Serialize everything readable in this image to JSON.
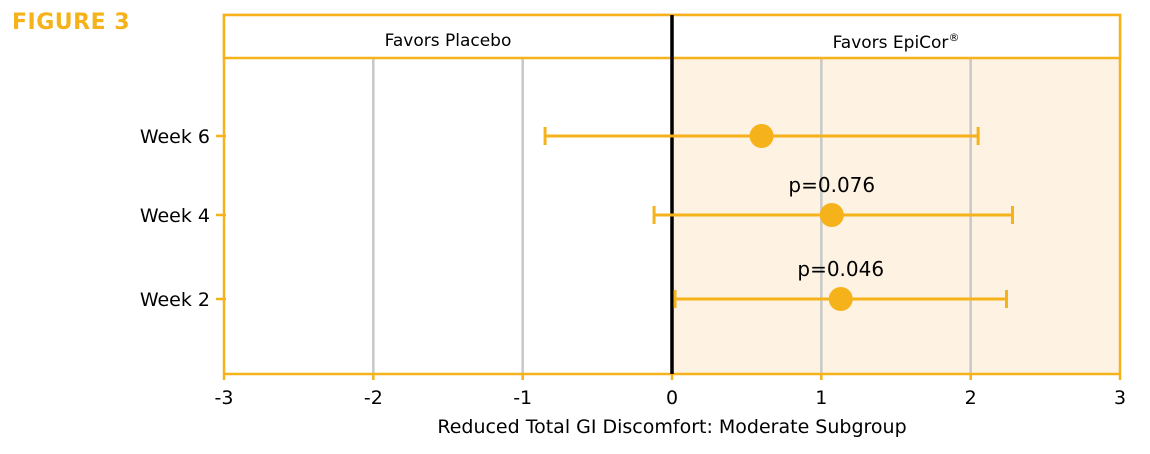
{
  "figure_label": "FIGURE 3",
  "colors": {
    "accent": "#F5B21B",
    "favor_region": "#FEF3E2",
    "grid": "#C8C8C8",
    "zero_line": "#000000"
  },
  "chart_data": {
    "type": "forest",
    "xlabel": "Reduced Total GI Discomfort: Moderate Subgroup",
    "xlim": [
      -3,
      3
    ],
    "xticks": [
      "-3",
      "-2",
      "-1",
      "0",
      "1",
      "2",
      "3"
    ],
    "gridlines": [
      -2,
      -1,
      1,
      2
    ],
    "header_left": "Favors Placebo",
    "header_right": "Favors EpiCor",
    "header_right_mark": "®",
    "categories": [
      "Week 6",
      "Week 4",
      "Week 2"
    ],
    "points": [
      {
        "label": "Week 6",
        "estimate": 0.6,
        "ci_low": -0.85,
        "ci_high": 2.05,
        "annotation": ""
      },
      {
        "label": "Week 4",
        "estimate": 1.07,
        "ci_low": -0.12,
        "ci_high": 2.28,
        "annotation": "p=0.076"
      },
      {
        "label": "Week 2",
        "estimate": 1.13,
        "ci_low": 0.02,
        "ci_high": 2.24,
        "annotation": "p=0.046"
      }
    ]
  }
}
